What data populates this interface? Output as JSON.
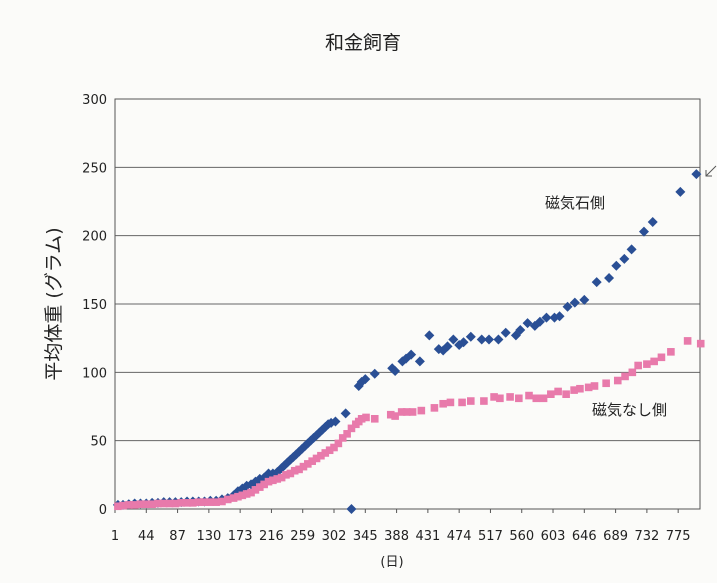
{
  "chart_data": {
    "type": "scatter",
    "title": "和金飼育",
    "ylabel": "平均体重 (グラム)",
    "xlabel": "(日)",
    "ylim": [
      0,
      300
    ],
    "xlim": [
      1,
      805
    ],
    "y_ticks": [
      "0",
      "50",
      "100",
      "150",
      "200",
      "250",
      "300"
    ],
    "x_ticks": [
      "1",
      "44",
      "87",
      "130",
      "173",
      "216",
      "259",
      "302",
      "345",
      "388",
      "431",
      "474",
      "517",
      "560",
      "603",
      "646",
      "689",
      "732",
      "775"
    ],
    "grid": true,
    "annotations": [
      "磁気石側",
      "磁気なし側"
    ],
    "series": [
      {
        "name": "磁気石側",
        "color": "#2a4f95",
        "marker": "diamond",
        "points": [
          [
            5,
            3
          ],
          [
            12,
            3
          ],
          [
            20,
            3.5
          ],
          [
            28,
            4
          ],
          [
            36,
            4
          ],
          [
            44,
            4
          ],
          [
            52,
            4.5
          ],
          [
            60,
            4.5
          ],
          [
            68,
            5
          ],
          [
            76,
            5
          ],
          [
            84,
            5
          ],
          [
            92,
            5
          ],
          [
            100,
            5.5
          ],
          [
            108,
            5.5
          ],
          [
            116,
            5.5
          ],
          [
            124,
            5.5
          ],
          [
            132,
            6
          ],
          [
            140,
            6
          ],
          [
            148,
            7
          ],
          [
            156,
            8
          ],
          [
            164,
            10
          ],
          [
            170,
            13
          ],
          [
            176,
            15
          ],
          [
            182,
            17
          ],
          [
            188,
            18
          ],
          [
            194,
            20
          ],
          [
            200,
            22
          ],
          [
            206,
            23
          ],
          [
            212,
            26
          ],
          [
            218,
            26
          ],
          [
            224,
            27
          ],
          [
            230,
            30
          ],
          [
            234,
            32
          ],
          [
            238,
            34
          ],
          [
            242,
            36
          ],
          [
            246,
            38
          ],
          [
            250,
            40
          ],
          [
            254,
            42
          ],
          [
            258,
            44
          ],
          [
            262,
            46
          ],
          [
            266,
            48
          ],
          [
            270,
            50
          ],
          [
            274,
            52
          ],
          [
            278,
            54
          ],
          [
            282,
            56
          ],
          [
            286,
            58
          ],
          [
            290,
            60
          ],
          [
            294,
            62
          ],
          [
            298,
            63
          ],
          [
            304,
            64
          ],
          [
            318,
            70
          ],
          [
            326,
            0
          ],
          [
            336,
            90
          ],
          [
            340,
            93
          ],
          [
            345,
            95
          ],
          [
            358,
            99
          ],
          [
            382,
            103
          ],
          [
            386,
            101
          ],
          [
            396,
            108
          ],
          [
            401,
            110
          ],
          [
            408,
            113
          ],
          [
            420,
            108
          ],
          [
            433,
            127
          ],
          [
            446,
            117
          ],
          [
            452,
            116
          ],
          [
            458,
            119
          ],
          [
            466,
            124
          ],
          [
            474,
            120
          ],
          [
            480,
            122
          ],
          [
            490,
            126
          ],
          [
            505,
            124
          ],
          [
            515,
            124
          ],
          [
            528,
            124
          ],
          [
            538,
            129
          ],
          [
            552,
            127
          ],
          [
            558,
            131
          ],
          [
            568,
            136
          ],
          [
            578,
            134
          ],
          [
            585,
            137
          ],
          [
            594,
            140
          ],
          [
            605,
            140
          ],
          [
            612,
            141
          ],
          [
            623,
            148
          ],
          [
            633,
            151
          ],
          [
            646,
            153
          ],
          [
            663,
            166
          ],
          [
            680,
            169
          ],
          [
            690,
            178
          ],
          [
            701,
            183
          ],
          [
            711,
            190
          ],
          [
            728,
            203
          ],
          [
            740,
            210
          ],
          [
            778,
            232
          ],
          [
            800,
            245
          ]
        ]
      },
      {
        "name": "磁気なし側",
        "color": "#e87aab",
        "marker": "square",
        "points": [
          [
            5,
            2
          ],
          [
            12,
            2.5
          ],
          [
            20,
            3
          ],
          [
            28,
            3
          ],
          [
            36,
            3.5
          ],
          [
            44,
            3.5
          ],
          [
            52,
            3.5
          ],
          [
            60,
            4
          ],
          [
            68,
            4
          ],
          [
            76,
            4
          ],
          [
            84,
            4
          ],
          [
            92,
            4.5
          ],
          [
            100,
            4.5
          ],
          [
            108,
            4.5
          ],
          [
            116,
            5
          ],
          [
            124,
            5
          ],
          [
            132,
            5
          ],
          [
            140,
            5
          ],
          [
            148,
            5.5
          ],
          [
            156,
            7
          ],
          [
            164,
            8
          ],
          [
            170,
            9
          ],
          [
            176,
            10
          ],
          [
            182,
            11
          ],
          [
            188,
            12
          ],
          [
            194,
            14
          ],
          [
            200,
            16
          ],
          [
            206,
            18
          ],
          [
            212,
            20
          ],
          [
            218,
            21
          ],
          [
            224,
            22
          ],
          [
            230,
            23
          ],
          [
            236,
            25
          ],
          [
            242,
            26
          ],
          [
            248,
            28
          ],
          [
            254,
            29
          ],
          [
            260,
            31
          ],
          [
            266,
            33
          ],
          [
            272,
            35
          ],
          [
            278,
            37
          ],
          [
            284,
            39
          ],
          [
            290,
            41
          ],
          [
            296,
            43
          ],
          [
            302,
            45
          ],
          [
            308,
            48
          ],
          [
            314,
            52
          ],
          [
            320,
            55
          ],
          [
            326,
            59
          ],
          [
            332,
            62
          ],
          [
            336,
            64
          ],
          [
            340,
            66
          ],
          [
            346,
            67
          ],
          [
            358,
            66
          ],
          [
            380,
            69
          ],
          [
            386,
            68
          ],
          [
            395,
            71
          ],
          [
            402,
            71
          ],
          [
            410,
            71
          ],
          [
            422,
            72
          ],
          [
            440,
            74
          ],
          [
            452,
            77
          ],
          [
            462,
            78
          ],
          [
            478,
            78
          ],
          [
            490,
            79
          ],
          [
            508,
            79
          ],
          [
            522,
            82
          ],
          [
            530,
            81
          ],
          [
            544,
            82
          ],
          [
            556,
            81
          ],
          [
            570,
            83
          ],
          [
            580,
            81
          ],
          [
            590,
            81
          ],
          [
            600,
            84
          ],
          [
            610,
            86
          ],
          [
            621,
            84
          ],
          [
            632,
            87
          ],
          [
            640,
            88
          ],
          [
            652,
            89
          ],
          [
            660,
            90
          ],
          [
            676,
            92
          ],
          [
            692,
            94
          ],
          [
            702,
            97
          ],
          [
            712,
            100
          ],
          [
            720,
            105
          ],
          [
            732,
            106
          ],
          [
            742,
            108
          ],
          [
            752,
            111
          ],
          [
            765,
            115
          ],
          [
            788,
            123
          ],
          [
            806,
            121
          ]
        ]
      }
    ]
  }
}
